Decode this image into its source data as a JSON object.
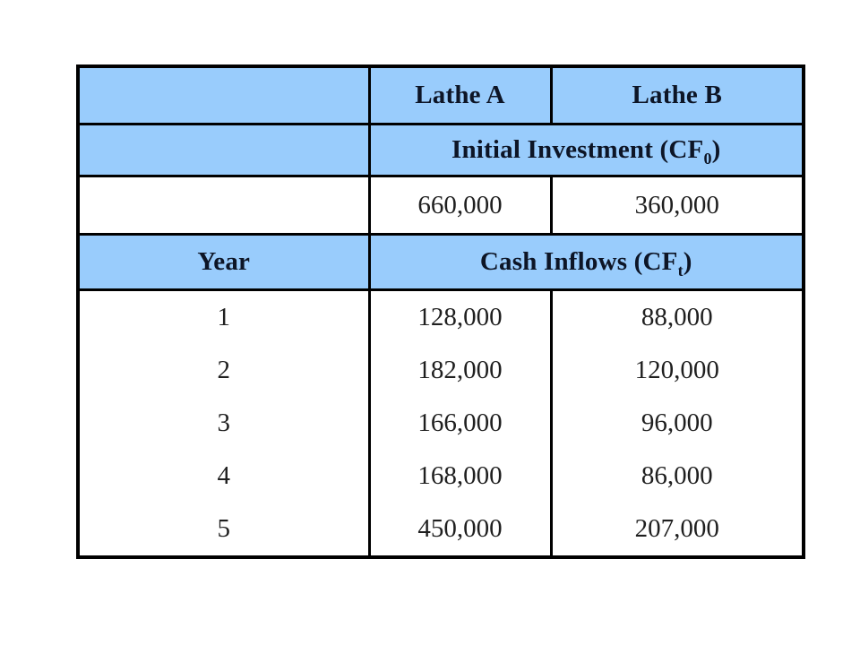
{
  "table": {
    "column_headers": {
      "corner": "",
      "lathe_a": "Lathe A",
      "lathe_b": "Lathe B"
    },
    "investment": {
      "label_pre": "Initial Investment (CF",
      "label_sub": "0",
      "label_post": ")",
      "lathe_a_value": "660,000",
      "lathe_b_value": "360,000"
    },
    "year_header": "Year",
    "inflows": {
      "label_pre": "Cash Inflows (CF",
      "label_sub": "t",
      "label_post": ")"
    },
    "rows": [
      {
        "year": "1",
        "lathe_a": "128,000",
        "lathe_b": "88,000"
      },
      {
        "year": "2",
        "lathe_a": "182,000",
        "lathe_b": "120,000"
      },
      {
        "year": "3",
        "lathe_a": "166,000",
        "lathe_b": "96,000"
      },
      {
        "year": "4",
        "lathe_a": "168,000",
        "lathe_b": "86,000"
      },
      {
        "year": "5",
        "lathe_a": "450,000",
        "lathe_b": "207,000"
      }
    ]
  },
  "colors": {
    "header_blue": "#99CCFC",
    "border_black": "#000000",
    "header_text": "#0d1526",
    "body_text": "#1f1f1f",
    "background": "#ffffff"
  }
}
